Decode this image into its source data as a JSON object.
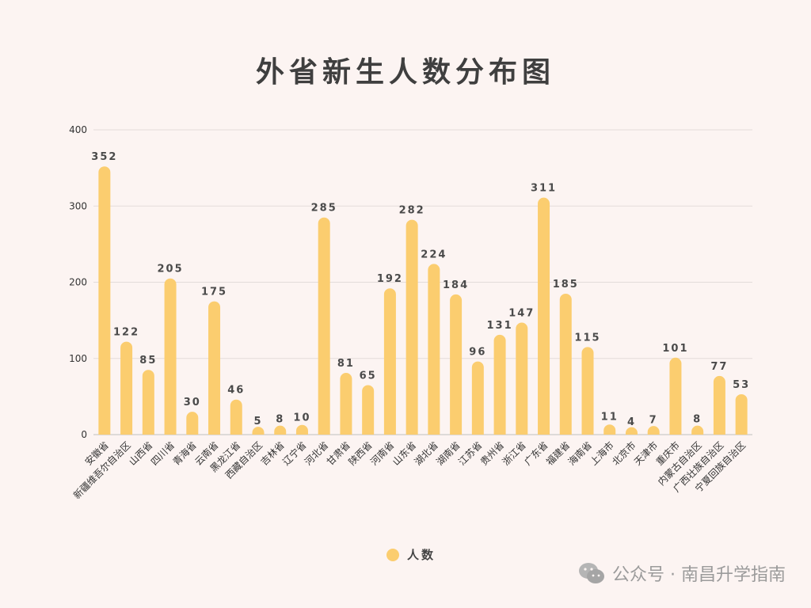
{
  "chart_data": {
    "type": "bar",
    "title": "外省新生人数分布图",
    "categories": [
      "安徽省",
      "新疆维吾尔自治区",
      "山西省",
      "四川省",
      "青海省",
      "云南省",
      "黑龙江省",
      "西藏自治区",
      "吉林省",
      "辽宁省",
      "河北省",
      "甘肃省",
      "陕西省",
      "河南省",
      "山东省",
      "湖北省",
      "湖南省",
      "江苏省",
      "贵州省",
      "浙江省",
      "广东省",
      "福建省",
      "海南省",
      "上海市",
      "北京市",
      "天津市",
      "重庆市",
      "内蒙古自治区",
      "广西壮族自治区",
      "宁夏回族自治区"
    ],
    "series": [
      {
        "name": "人数",
        "values": [
          352,
          122,
          85,
          205,
          30,
          175,
          46,
          5,
          8,
          10,
          285,
          81,
          65,
          192,
          282,
          224,
          184,
          96,
          131,
          147,
          311,
          185,
          115,
          11,
          4,
          7,
          101,
          8,
          77,
          53
        ]
      }
    ],
    "ylim": [
      0,
      400
    ],
    "yticks": [
      "0",
      "100",
      "200",
      "300",
      "400"
    ],
    "grid": true,
    "legend_position": "bottom",
    "bar_color": "#fbcd6f"
  },
  "watermark": {
    "text": "公众号 · 南昌升学指南",
    "icon": "wechat-icon"
  }
}
